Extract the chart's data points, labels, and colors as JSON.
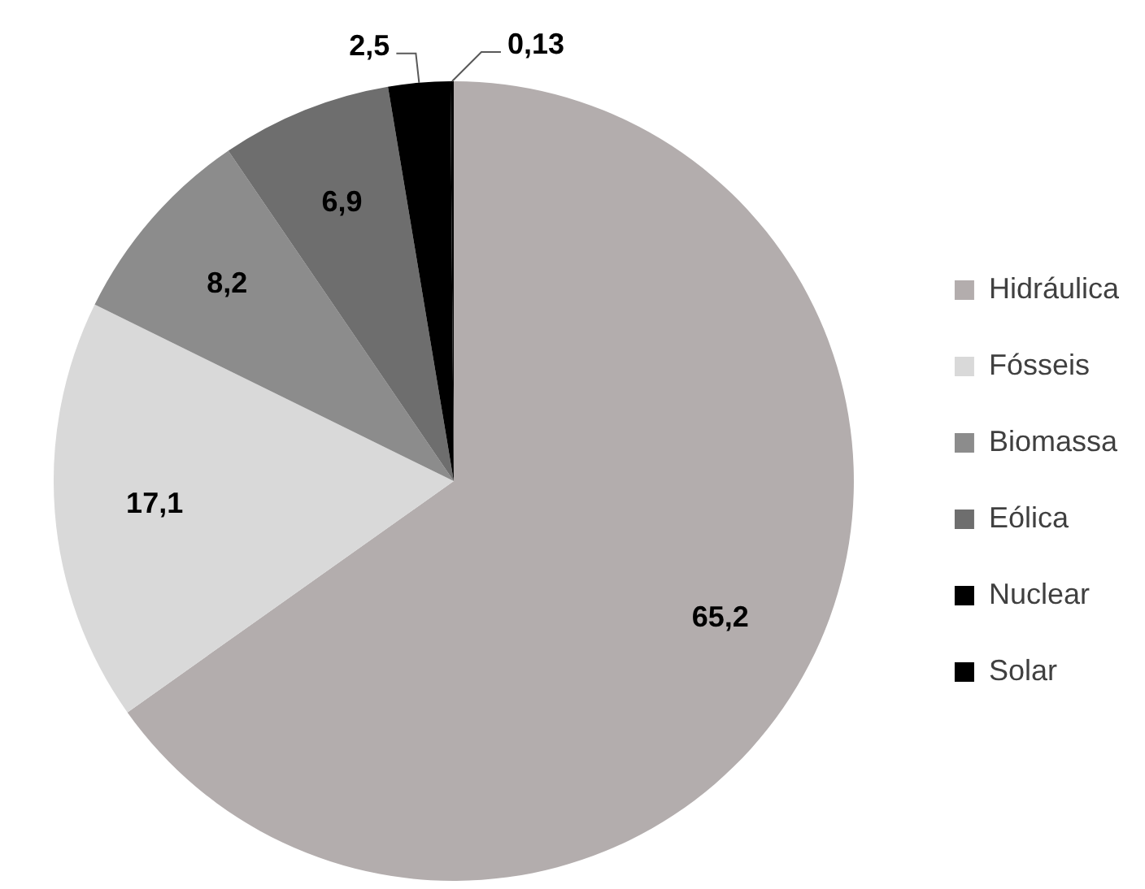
{
  "chart_data": {
    "type": "pie",
    "categories": [
      "Hidráulica",
      "Fósseis",
      "Biomassa",
      "Eólica",
      "Nuclear",
      "Solar"
    ],
    "values": [
      65.2,
      17.1,
      8.2,
      6.9,
      2.5,
      0.13
    ],
    "colors": [
      "#b3adad",
      "#d9d9d9",
      "#8c8c8c",
      "#6e6e6e",
      "#000000",
      "#000000"
    ],
    "value_labels": [
      "65,2",
      "17,1",
      "8,2",
      "6,9",
      "2,5",
      "0,13"
    ],
    "legend": "right"
  }
}
